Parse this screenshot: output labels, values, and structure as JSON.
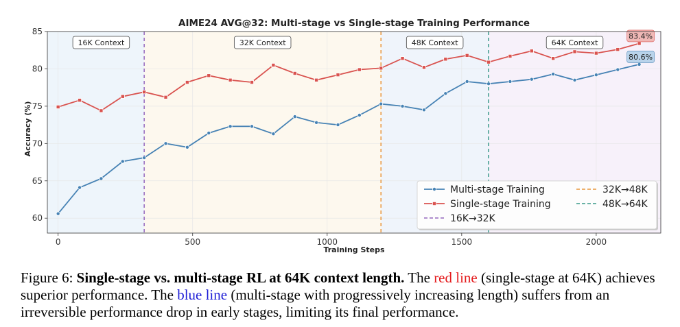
{
  "chart_data": {
    "type": "line",
    "title": "AIME24 AVG@32: Multi-stage vs Single-stage Training Performance",
    "xlabel": "Training Steps",
    "ylabel": "Accuracy (%)",
    "xlim": [
      -40,
      2240
    ],
    "ylim": [
      58,
      85
    ],
    "xticks": [
      0,
      500,
      1000,
      1500,
      2000
    ],
    "yticks": [
      60,
      65,
      70,
      75,
      80,
      85
    ],
    "grid": true,
    "x": [
      0,
      80,
      160,
      240,
      320,
      400,
      480,
      560,
      640,
      720,
      800,
      880,
      960,
      1040,
      1120,
      1200,
      1280,
      1360,
      1440,
      1520,
      1600,
      1680,
      1760,
      1840,
      1920,
      2000,
      2080,
      2160
    ],
    "series": [
      {
        "name": "Multi-stage Training",
        "color": "#4682b4",
        "values": [
          60.6,
          64.1,
          65.3,
          67.6,
          68.1,
          70.0,
          69.5,
          71.4,
          72.3,
          72.3,
          71.3,
          73.6,
          72.8,
          72.5,
          73.8,
          75.3,
          75.0,
          74.5,
          76.7,
          78.3,
          78.0,
          78.3,
          78.6,
          79.3,
          78.5,
          79.2,
          79.9,
          80.6
        ]
      },
      {
        "name": "Single-stage Training",
        "color": "#d9534f",
        "values": [
          74.9,
          75.8,
          74.4,
          76.3,
          76.9,
          76.2,
          78.2,
          79.1,
          78.5,
          78.2,
          80.5,
          79.4,
          78.5,
          79.2,
          79.9,
          80.1,
          81.4,
          80.2,
          81.3,
          81.8,
          80.9,
          81.7,
          82.4,
          81.4,
          82.3,
          82.1,
          82.6,
          83.4
        ]
      }
    ],
    "stage_lines": [
      {
        "name": "16K→32K",
        "x": 320,
        "color": "#9467bd"
      },
      {
        "name": "32K→48K",
        "x": 1200,
        "color": "#e8963c"
      },
      {
        "name": "48K→64K",
        "x": 1600,
        "color": "#3a9a8a"
      }
    ],
    "regions": [
      {
        "label": "16K Context",
        "start": -40,
        "end": 320,
        "color": "#eef5fb",
        "label_x": 160
      },
      {
        "label": "32K Context",
        "start": 320,
        "end": 1200,
        "color": "#fdf8ee",
        "label_x": 760
      },
      {
        "label": "48K Context",
        "start": 1200,
        "end": 1600,
        "color": "#eff4fb",
        "label_x": 1400
      },
      {
        "label": "64K Context",
        "start": 1600,
        "end": 2240,
        "color": "#f7f1fa",
        "label_x": 1920
      }
    ],
    "final_annotations": [
      {
        "text": "83.4%",
        "series": "Single-stage Training",
        "bg": "#f0b8b6"
      },
      {
        "text": "80.6%",
        "series": "Multi-stage Training",
        "bg": "#b9d3ea"
      }
    ],
    "legend": {
      "placement": "lower-right",
      "entries": [
        "Multi-stage Training",
        "Single-stage Training",
        "16K→32K",
        "32K→48K",
        "48K→64K"
      ]
    }
  },
  "caption": {
    "label": "Figure 6:",
    "bold_title": "Single-stage vs. multi-stage RL at 64K context length.",
    "text_1": "The",
    "red_phrase": "red line",
    "text_2": "(single-stage at 64K) achieves superior performance. The",
    "blue_phrase": "blue line",
    "text_3": "(multi-stage with progressively increasing length) suffers from an irreversible performance drop in early stages, limiting its final performance."
  }
}
